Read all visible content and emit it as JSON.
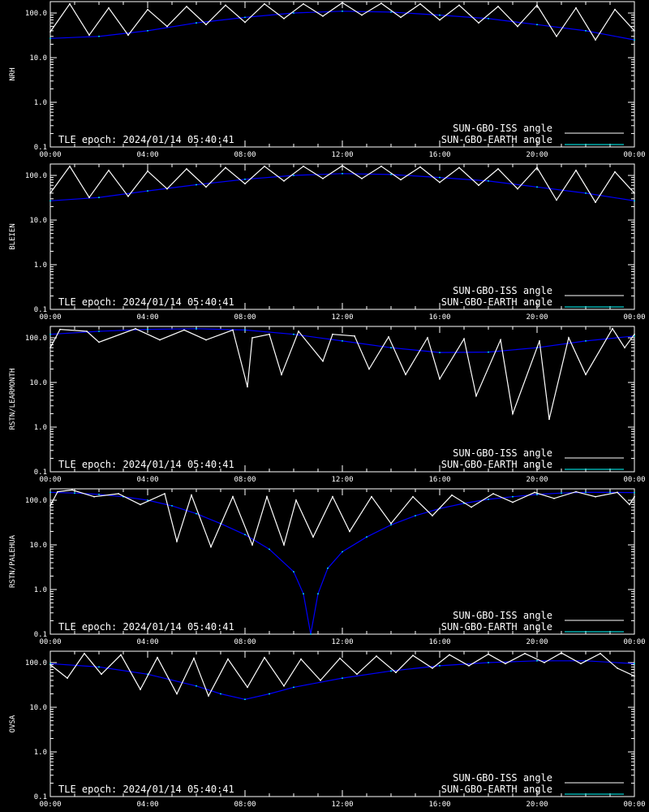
{
  "epoch_text": "TLE epoch: 2024/01/14 05:40:41",
  "legend": [
    {
      "label": "SUN-GBO-ISS angle",
      "color": "#ffffff"
    },
    {
      "label": "SUN-GBO-EARTH angle",
      "color": "#00ffff"
    }
  ],
  "colors": {
    "background": "#000000",
    "axes": "#ffffff",
    "iss_day": "#ffffff",
    "iss_night": "#888888",
    "earth_day": "#00ffff",
    "earth_night": "#0000ff"
  },
  "x_ticks": [
    "00:00",
    "04:00",
    "08:00",
    "12:00",
    "16:00",
    "20:00",
    "00:00"
  ],
  "y_ticks": [
    "0.1",
    "1.0",
    "10.0",
    "100.0"
  ],
  "chart_data": [
    {
      "type": "line",
      "ylabel": "NRH",
      "xlim": [
        0,
        24
      ],
      "ylim": [
        0.1,
        180
      ],
      "log_y": true,
      "series": [
        {
          "name": "SUN-GBO-ISS angle",
          "x": [
            0.0,
            0.8,
            1.6,
            2.4,
            3.2,
            4.0,
            4.8,
            5.6,
            6.4,
            7.2,
            8.0,
            8.8,
            9.6,
            10.4,
            11.2,
            12.0,
            12.8,
            13.6,
            14.4,
            15.2,
            16.0,
            16.8,
            17.6,
            18.4,
            19.2,
            20.0,
            20.8,
            21.6,
            22.4,
            23.2,
            24.0
          ],
          "y": [
            38,
            160,
            32,
            130,
            32,
            120,
            50,
            140,
            55,
            150,
            62,
            160,
            75,
            160,
            85,
            170,
            90,
            165,
            80,
            160,
            70,
            150,
            60,
            140,
            50,
            150,
            30,
            130,
            25,
            120,
            40
          ]
        },
        {
          "name": "SUN-GBO-EARTH angle",
          "x": [
            0,
            2,
            4,
            6,
            8,
            10,
            12,
            14,
            16,
            18,
            20,
            22,
            24
          ],
          "y": [
            27,
            30,
            40,
            60,
            80,
            100,
            110,
            105,
            90,
            75,
            55,
            40,
            25
          ]
        }
      ]
    },
    {
      "type": "line",
      "ylabel": "BLEIEN",
      "xlim": [
        0,
        24
      ],
      "ylim": [
        0.1,
        180
      ],
      "log_y": true,
      "series": [
        {
          "name": "SUN-GBO-ISS angle",
          "x": [
            0.0,
            0.8,
            1.6,
            2.4,
            3.2,
            4.0,
            4.8,
            5.6,
            6.4,
            7.2,
            8.0,
            8.8,
            9.6,
            10.4,
            11.2,
            12.0,
            12.8,
            13.6,
            14.4,
            15.2,
            16.0,
            16.8,
            17.6,
            18.4,
            19.2,
            20.0,
            20.8,
            21.6,
            22.4,
            23.2,
            24.0
          ],
          "y": [
            40,
            160,
            32,
            130,
            34,
            125,
            50,
            140,
            55,
            150,
            65,
            160,
            75,
            160,
            85,
            165,
            85,
            160,
            80,
            155,
            70,
            150,
            60,
            140,
            50,
            150,
            28,
            130,
            25,
            120,
            40
          ]
        },
        {
          "name": "SUN-GBO-EARTH angle",
          "x": [
            0,
            2,
            4,
            6,
            8,
            10,
            12,
            14,
            16,
            18,
            20,
            22,
            24
          ],
          "y": [
            27,
            32,
            45,
            62,
            82,
            100,
            110,
            105,
            90,
            75,
            55,
            40,
            27
          ]
        }
      ]
    },
    {
      "type": "line",
      "ylabel": "RSTN/LEARMONTH",
      "xlim": [
        0,
        24
      ],
      "ylim": [
        0.1,
        180
      ],
      "log_y": true,
      "series": [
        {
          "name": "SUN-GBO-ISS angle",
          "x": [
            0.0,
            0.4,
            1.5,
            2.0,
            3.5,
            4.5,
            5.5,
            6.4,
            7.5,
            8.1,
            8.3,
            9.0,
            9.5,
            10.2,
            11.2,
            11.6,
            12.5,
            13.1,
            13.9,
            14.6,
            15.5,
            16.0,
            17.0,
            17.5,
            18.5,
            19.0,
            20.1,
            20.5,
            21.3,
            22.0,
            23.1,
            23.6,
            24.0
          ],
          "y": [
            60,
            155,
            140,
            80,
            160,
            90,
            150,
            90,
            150,
            8,
            100,
            120,
            15,
            140,
            30,
            120,
            110,
            20,
            105,
            15,
            100,
            12,
            95,
            5,
            90,
            2,
            85,
            1.5,
            100,
            15,
            160,
            60,
            120
          ]
        },
        {
          "name": "SUN-GBO-EARTH angle",
          "x": [
            0,
            2,
            4,
            6,
            8,
            10,
            12,
            14,
            16,
            18,
            20,
            22,
            24
          ],
          "y": [
            120,
            140,
            155,
            160,
            150,
            120,
            85,
            60,
            47,
            48,
            60,
            85,
            110
          ]
        }
      ]
    },
    {
      "type": "line",
      "ylabel": "RSTN/PALEHUA",
      "xlim": [
        0,
        24
      ],
      "ylim": [
        0.1,
        180
      ],
      "log_y": true,
      "series": [
        {
          "name": "SUN-GBO-ISS angle",
          "x": [
            0.0,
            0.3,
            0.9,
            1.8,
            2.8,
            3.7,
            4.7,
            5.2,
            5.8,
            6.6,
            7.5,
            8.3,
            8.9,
            9.6,
            10.1,
            10.8,
            11.6,
            12.3,
            13.2,
            14.0,
            14.9,
            15.7,
            16.5,
            17.3,
            18.2,
            19.0,
            19.9,
            20.7,
            21.6,
            22.4,
            23.3,
            23.8,
            24.0
          ],
          "y": [
            75,
            155,
            170,
            120,
            140,
            80,
            140,
            12,
            130,
            9,
            120,
            10,
            120,
            10,
            100,
            15,
            120,
            20,
            120,
            30,
            120,
            45,
            130,
            70,
            140,
            90,
            150,
            110,
            155,
            120,
            150,
            80,
            120
          ]
        },
        {
          "name": "SUN-GBO-EARTH angle",
          "x": [
            0,
            1,
            2,
            3,
            4,
            5,
            6,
            7,
            8,
            9,
            10,
            10.4,
            10.7,
            11.0,
            11.4,
            12,
            13,
            14,
            15,
            16,
            17,
            18,
            19,
            20,
            21,
            22,
            23,
            24
          ],
          "y": [
            150,
            145,
            135,
            120,
            100,
            75,
            50,
            30,
            17,
            8,
            2.5,
            0.8,
            0.1,
            0.8,
            3,
            7,
            15,
            28,
            45,
            65,
            85,
            105,
            120,
            135,
            145,
            150,
            150,
            148
          ]
        }
      ]
    },
    {
      "type": "line",
      "ylabel": "OVSA",
      "xlim": [
        0,
        24
      ],
      "ylim": [
        0.1,
        180
      ],
      "log_y": true,
      "series": [
        {
          "name": "SUN-GBO-ISS angle",
          "x": [
            0.0,
            0.7,
            1.4,
            2.1,
            2.9,
            3.7,
            4.4,
            5.2,
            5.9,
            6.5,
            7.3,
            8.1,
            8.8,
            9.6,
            10.3,
            11.1,
            11.9,
            12.6,
            13.4,
            14.2,
            14.9,
            15.7,
            16.4,
            17.2,
            18.0,
            18.7,
            19.5,
            20.3,
            21.0,
            21.8,
            22.6,
            23.3,
            24.0
          ],
          "y": [
            90,
            45,
            160,
            55,
            150,
            25,
            130,
            20,
            125,
            18,
            120,
            28,
            130,
            30,
            120,
            40,
            125,
            55,
            140,
            60,
            145,
            75,
            150,
            85,
            155,
            95,
            160,
            100,
            165,
            95,
            160,
            75,
            50
          ]
        },
        {
          "name": "SUN-GBO-EARTH angle",
          "x": [
            0,
            2,
            4,
            6,
            7,
            8,
            9,
            10,
            12,
            14,
            16,
            18,
            20,
            22,
            24
          ],
          "y": [
            95,
            80,
            55,
            30,
            20,
            15,
            20,
            28,
            45,
            65,
            85,
            100,
            110,
            110,
            95
          ]
        }
      ]
    }
  ]
}
